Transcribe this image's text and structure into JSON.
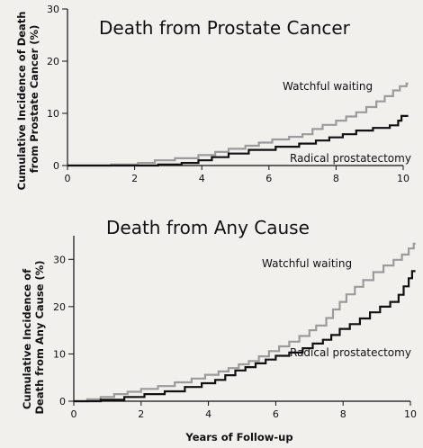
{
  "chart_data": [
    {
      "type": "line",
      "title": "Death from Prostate Cancer",
      "ylabel": [
        "Cumulative Incidence of Death",
        "from Prostate Cancer (%)"
      ],
      "xlabel": "",
      "xlim": [
        0,
        10
      ],
      "ylim": [
        0,
        30
      ],
      "x_ticks": [
        0,
        2,
        4,
        6,
        8,
        10
      ],
      "y_ticks": [
        0,
        10,
        20,
        30
      ],
      "grid": false,
      "series": [
        {
          "name": "Watchful waiting",
          "color": "#9b9b9b",
          "points": [
            [
              0,
              0
            ],
            [
              1.3,
              0
            ],
            [
              1.3,
              0.2
            ],
            [
              2.1,
              0.2
            ],
            [
              2.1,
              0.5
            ],
            [
              2.6,
              0.5
            ],
            [
              2.6,
              1.0
            ],
            [
              3.2,
              1.0
            ],
            [
              3.2,
              1.4
            ],
            [
              3.9,
              1.4
            ],
            [
              3.9,
              2.0
            ],
            [
              4.4,
              2.0
            ],
            [
              4.4,
              2.6
            ],
            [
              4.8,
              2.6
            ],
            [
              4.8,
              3.2
            ],
            [
              5.3,
              3.2
            ],
            [
              5.3,
              3.8
            ],
            [
              5.7,
              3.8
            ],
            [
              5.7,
              4.4
            ],
            [
              6.1,
              4.4
            ],
            [
              6.1,
              5.0
            ],
            [
              6.6,
              5.0
            ],
            [
              6.6,
              5.5
            ],
            [
              7.0,
              5.5
            ],
            [
              7.0,
              6.0
            ],
            [
              7.3,
              6.0
            ],
            [
              7.3,
              7.0
            ],
            [
              7.6,
              7.0
            ],
            [
              7.6,
              7.8
            ],
            [
              8.0,
              7.8
            ],
            [
              8.0,
              8.6
            ],
            [
              8.3,
              8.6
            ],
            [
              8.3,
              9.4
            ],
            [
              8.6,
              9.4
            ],
            [
              8.6,
              10.2
            ],
            [
              8.9,
              10.2
            ],
            [
              8.9,
              11.2
            ],
            [
              9.2,
              11.2
            ],
            [
              9.2,
              12.3
            ],
            [
              9.45,
              12.3
            ],
            [
              9.45,
              13.3
            ],
            [
              9.7,
              13.3
            ],
            [
              9.7,
              14.4
            ],
            [
              9.9,
              14.4
            ],
            [
              9.9,
              15.2
            ],
            [
              10.1,
              15.2
            ],
            [
              10.1,
              15.7
            ],
            [
              10.15,
              15.7
            ]
          ]
        },
        {
          "name": "Radical prostatectomy",
          "color": "#111111",
          "points": [
            [
              0,
              0
            ],
            [
              2.7,
              0
            ],
            [
              2.7,
              0.2
            ],
            [
              3.4,
              0.2
            ],
            [
              3.4,
              0.5
            ],
            [
              3.9,
              0.5
            ],
            [
              3.9,
              1.0
            ],
            [
              4.3,
              1.0
            ],
            [
              4.3,
              1.6
            ],
            [
              4.8,
              1.6
            ],
            [
              4.8,
              2.3
            ],
            [
              5.4,
              2.3
            ],
            [
              5.4,
              3.0
            ],
            [
              6.2,
              3.0
            ],
            [
              6.2,
              3.6
            ],
            [
              6.9,
              3.6
            ],
            [
              6.9,
              4.2
            ],
            [
              7.4,
              4.2
            ],
            [
              7.4,
              4.8
            ],
            [
              7.8,
              4.8
            ],
            [
              7.8,
              5.4
            ],
            [
              8.2,
              5.4
            ],
            [
              8.2,
              6.0
            ],
            [
              8.6,
              6.0
            ],
            [
              8.6,
              6.7
            ],
            [
              9.1,
              6.7
            ],
            [
              9.1,
              7.2
            ],
            [
              9.6,
              7.2
            ],
            [
              9.6,
              7.7
            ],
            [
              9.85,
              7.7
            ],
            [
              9.85,
              8.6
            ],
            [
              9.95,
              8.6
            ],
            [
              9.95,
              9.5
            ],
            [
              10.15,
              9.5
            ]
          ]
        }
      ]
    },
    {
      "type": "line",
      "title": "Death from Any Cause",
      "ylabel": [
        "Cumulative Incidence of",
        "Death from Any Cause (%)"
      ],
      "xlabel": "Years of Follow-up",
      "xlim": [
        0,
        10
      ],
      "ylim": [
        0,
        35
      ],
      "x_ticks": [
        0,
        2,
        4,
        6,
        8,
        10
      ],
      "y_ticks": [
        0,
        10,
        20,
        30
      ],
      "grid": false,
      "series": [
        {
          "name": "Watchful waiting",
          "color": "#9b9b9b",
          "points": [
            [
              0,
              0
            ],
            [
              0.4,
              0
            ],
            [
              0.4,
              0.4
            ],
            [
              0.8,
              0.4
            ],
            [
              0.8,
              0.9
            ],
            [
              1.2,
              0.9
            ],
            [
              1.2,
              1.5
            ],
            [
              1.6,
              1.5
            ],
            [
              1.6,
              2.0
            ],
            [
              2.0,
              2.0
            ],
            [
              2.0,
              2.6
            ],
            [
              2.5,
              2.6
            ],
            [
              2.5,
              3.2
            ],
            [
              3.0,
              3.2
            ],
            [
              3.0,
              4.0
            ],
            [
              3.5,
              4.0
            ],
            [
              3.5,
              4.8
            ],
            [
              3.9,
              4.8
            ],
            [
              3.9,
              5.6
            ],
            [
              4.3,
              5.6
            ],
            [
              4.3,
              6.3
            ],
            [
              4.6,
              6.3
            ],
            [
              4.6,
              7.0
            ],
            [
              4.9,
              7.0
            ],
            [
              4.9,
              7.8
            ],
            [
              5.2,
              7.8
            ],
            [
              5.2,
              8.5
            ],
            [
              5.5,
              8.5
            ],
            [
              5.5,
              9.5
            ],
            [
              5.8,
              9.5
            ],
            [
              5.8,
              10.6
            ],
            [
              6.1,
              10.6
            ],
            [
              6.1,
              11.6
            ],
            [
              6.4,
              11.6
            ],
            [
              6.4,
              12.6
            ],
            [
              6.7,
              12.6
            ],
            [
              6.7,
              13.8
            ],
            [
              7.0,
              13.8
            ],
            [
              7.0,
              15.0
            ],
            [
              7.2,
              15.0
            ],
            [
              7.2,
              16.0
            ],
            [
              7.5,
              16.0
            ],
            [
              7.5,
              17.6
            ],
            [
              7.7,
              17.6
            ],
            [
              7.7,
              19.4
            ],
            [
              7.9,
              19.4
            ],
            [
              7.9,
              21.0
            ],
            [
              8.1,
              21.0
            ],
            [
              8.1,
              22.6
            ],
            [
              8.35,
              22.6
            ],
            [
              8.35,
              24.2
            ],
            [
              8.6,
              24.2
            ],
            [
              8.6,
              25.6
            ],
            [
              8.9,
              25.6
            ],
            [
              8.9,
              27.3
            ],
            [
              9.2,
              27.3
            ],
            [
              9.2,
              28.7
            ],
            [
              9.5,
              28.7
            ],
            [
              9.5,
              29.9
            ],
            [
              9.75,
              29.9
            ],
            [
              9.75,
              31.0
            ],
            [
              9.95,
              31.0
            ],
            [
              9.95,
              32.3
            ],
            [
              10.1,
              32.3
            ],
            [
              10.1,
              33.3
            ],
            [
              10.15,
              33.3
            ]
          ]
        },
        {
          "name": "Radical prostatectomy",
          "color": "#111111",
          "points": [
            [
              0,
              0
            ],
            [
              0.8,
              0
            ],
            [
              0.8,
              0.3
            ],
            [
              1.5,
              0.3
            ],
            [
              1.5,
              0.9
            ],
            [
              2.1,
              0.9
            ],
            [
              2.1,
              1.5
            ],
            [
              2.7,
              1.5
            ],
            [
              2.7,
              2.1
            ],
            [
              3.3,
              2.1
            ],
            [
              3.3,
              3.0
            ],
            [
              3.8,
              3.0
            ],
            [
              3.8,
              3.8
            ],
            [
              4.2,
              3.8
            ],
            [
              4.2,
              4.5
            ],
            [
              4.5,
              4.5
            ],
            [
              4.5,
              5.5
            ],
            [
              4.8,
              5.5
            ],
            [
              4.8,
              6.5
            ],
            [
              5.1,
              6.5
            ],
            [
              5.1,
              7.2
            ],
            [
              5.4,
              7.2
            ],
            [
              5.4,
              8.0
            ],
            [
              5.7,
              8.0
            ],
            [
              5.7,
              8.8
            ],
            [
              6.0,
              8.8
            ],
            [
              6.0,
              9.6
            ],
            [
              6.4,
              9.6
            ],
            [
              6.4,
              10.3
            ],
            [
              6.8,
              10.3
            ],
            [
              6.8,
              11.2
            ],
            [
              7.1,
              11.2
            ],
            [
              7.1,
              12.2
            ],
            [
              7.4,
              12.2
            ],
            [
              7.4,
              13.0
            ],
            [
              7.65,
              13.0
            ],
            [
              7.65,
              14.0
            ],
            [
              7.9,
              14.0
            ],
            [
              7.9,
              15.3
            ],
            [
              8.2,
              15.3
            ],
            [
              8.2,
              16.3
            ],
            [
              8.5,
              16.3
            ],
            [
              8.5,
              17.5
            ],
            [
              8.8,
              17.5
            ],
            [
              8.8,
              18.8
            ],
            [
              9.1,
              18.8
            ],
            [
              9.1,
              20.0
            ],
            [
              9.4,
              20.0
            ],
            [
              9.4,
              21.0
            ],
            [
              9.65,
              21.0
            ],
            [
              9.65,
              22.5
            ],
            [
              9.8,
              22.5
            ],
            [
              9.8,
              24.3
            ],
            [
              9.95,
              24.3
            ],
            [
              9.95,
              26.0
            ],
            [
              10.05,
              26.0
            ],
            [
              10.05,
              27.5
            ],
            [
              10.15,
              27.5
            ]
          ]
        }
      ]
    }
  ]
}
